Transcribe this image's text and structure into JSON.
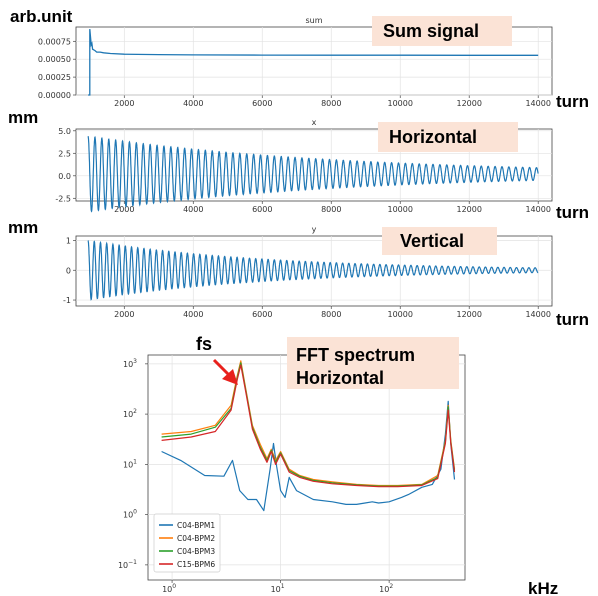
{
  "chart_data": [
    {
      "type": "line",
      "title": "sum",
      "ylabel": "arb.unit",
      "xlabel": "turn",
      "annotation": "Sum signal",
      "x_ticks": [
        "2000",
        "4000",
        "6000",
        "8000",
        "10000",
        "12000",
        "14000"
      ],
      "y_ticks": [
        "0.00000",
        "0.00025",
        "0.00050",
        "0.00075"
      ],
      "xlim": [
        600,
        14400
      ],
      "ylim": [
        0,
        0.00095
      ],
      "grid": true,
      "series": [
        {
          "color": "#1f77b4",
          "x": [
            950,
            1000,
            1000,
            1040,
            1060,
            1080,
            1150,
            1200,
            1300,
            1400,
            1600,
            2000,
            3000,
            4000,
            6000,
            8000,
            10000,
            12000,
            14000
          ],
          "y": [
            0,
            0,
            0.00092,
            0.0007,
            0.00072,
            0.00064,
            0.00062,
            0.0006,
            0.0006,
            0.00059,
            0.00058,
            0.00057,
            0.000565,
            0.00056,
            0.000558,
            0.000556,
            0.000556,
            0.000555,
            0.000555
          ]
        }
      ]
    },
    {
      "type": "line",
      "title": "x",
      "ylabel": "mm",
      "xlabel": "turn",
      "annotation": "Horizontal",
      "x_ticks": [
        "2000",
        "4000",
        "6000",
        "8000",
        "10000",
        "12000",
        "14000"
      ],
      "y_ticks": [
        "-2.5",
        "0.0",
        "2.5",
        "5.0"
      ],
      "xlim": [
        600,
        14400
      ],
      "ylim": [
        -2.8,
        5.2
      ],
      "grid": true,
      "oscillation": {
        "start": 950,
        "end": 14000,
        "period": 200,
        "offset": 0.2,
        "amp_start": 4.2,
        "amp_end": 0.7,
        "series_color": "#1f77b4"
      }
    },
    {
      "type": "line",
      "title": "y",
      "ylabel": "mm",
      "xlabel": "turn",
      "annotation": "Vertical",
      "x_ticks": [
        "2000",
        "4000",
        "6000",
        "8000",
        "10000",
        "12000",
        "14000"
      ],
      "y_ticks": [
        "-1",
        "0",
        "1"
      ],
      "xlim": [
        600,
        14400
      ],
      "ylim": [
        -1.2,
        1.15
      ],
      "grid": true,
      "oscillation": {
        "start": 950,
        "end": 14000,
        "period": 180,
        "offset": 0,
        "amp_start": 1.0,
        "amp_end": 0.08,
        "series_color": "#1f77b4"
      }
    },
    {
      "type": "line",
      "title": "",
      "xlabel": "kHz",
      "annotation_line1": "FFT spectrum",
      "annotation_line2": "Horizontal",
      "arrow_label": "fs",
      "x_scale": "log",
      "y_scale": "log",
      "xlim": [
        0.6,
        500
      ],
      "ylim": [
        0.05,
        1500
      ],
      "x_ticks": [
        {
          "v": 1,
          "b": "10",
          "e": "0"
        },
        {
          "v": 10,
          "b": "10",
          "e": "1"
        },
        {
          "v": 100,
          "b": "10",
          "e": "2"
        }
      ],
      "y_ticks": [
        {
          "v": 0.1,
          "b": "10",
          "e": "−1"
        },
        {
          "v": 1,
          "b": "10",
          "e": "0"
        },
        {
          "v": 10,
          "b": "10",
          "e": "1"
        },
        {
          "v": 100,
          "b": "10",
          "e": "2"
        },
        {
          "v": 1000,
          "b": "10",
          "e": "3"
        }
      ],
      "grid": true,
      "legend_position": "lower-left",
      "series": [
        {
          "name": "C04-BPM1",
          "color": "#1f77b4",
          "x": [
            0.8,
            1.2,
            2,
            3,
            3.6,
            4.2,
            5,
            6,
            7,
            8,
            8.6,
            9.2,
            10,
            11,
            12,
            14,
            20,
            30,
            40,
            50,
            60,
            70,
            80,
            100,
            130,
            150,
            200,
            250,
            300,
            330,
            350,
            370,
            400
          ],
          "y": [
            18,
            12,
            6,
            5.8,
            12,
            3,
            2,
            2,
            1.2,
            8,
            26,
            9,
            3,
            2.2,
            5.5,
            3,
            2,
            1.8,
            1.6,
            1.6,
            1.7,
            1.8,
            1.7,
            1.8,
            2.2,
            2.5,
            3.5,
            4,
            8,
            40,
            180,
            25,
            5
          ]
        },
        {
          "name": "C04-BPM2",
          "color": "#ff7f0e",
          "x": [
            0.8,
            1.5,
            2.5,
            3.5,
            4,
            4.3,
            4.8,
            5.5,
            6.5,
            7.5,
            8.2,
            9,
            10,
            12,
            15,
            20,
            30,
            50,
            80,
            120,
            200,
            280,
            330,
            350,
            370,
            400
          ],
          "y": [
            40,
            45,
            60,
            150,
            600,
            1150,
            300,
            60,
            25,
            13,
            20,
            12,
            18,
            8,
            6,
            5,
            4.5,
            4,
            3.8,
            3.8,
            4,
            6,
            30,
            150,
            30,
            8
          ]
        },
        {
          "name": "C04-BPM3",
          "color": "#2ca02c",
          "x": [
            0.8,
            1.5,
            2.5,
            3.5,
            4,
            4.3,
            4.8,
            5.5,
            6.5,
            7.5,
            8.2,
            9,
            10,
            12,
            15,
            20,
            30,
            50,
            80,
            120,
            200,
            280,
            330,
            350,
            370,
            400
          ],
          "y": [
            35,
            40,
            55,
            130,
            550,
            1050,
            280,
            55,
            22,
            12,
            19,
            11,
            17,
            7.5,
            5.8,
            4.8,
            4.3,
            3.9,
            3.7,
            3.7,
            3.9,
            5.5,
            28,
            140,
            28,
            7.5
          ]
        },
        {
          "name": "C15-BPM6",
          "color": "#d62728",
          "x": [
            0.8,
            1.5,
            2.5,
            3.5,
            4,
            4.3,
            4.8,
            5.5,
            6.5,
            7.5,
            8.2,
            9,
            10,
            12,
            15,
            20,
            30,
            50,
            80,
            120,
            200,
            280,
            330,
            350,
            370,
            400
          ],
          "y": [
            30,
            35,
            45,
            120,
            500,
            950,
            260,
            50,
            20,
            11,
            18,
            10,
            16,
            7,
            5.5,
            4.6,
            4.1,
            3.8,
            3.6,
            3.6,
            3.8,
            5.2,
            26,
            120,
            26,
            7
          ]
        }
      ]
    }
  ]
}
